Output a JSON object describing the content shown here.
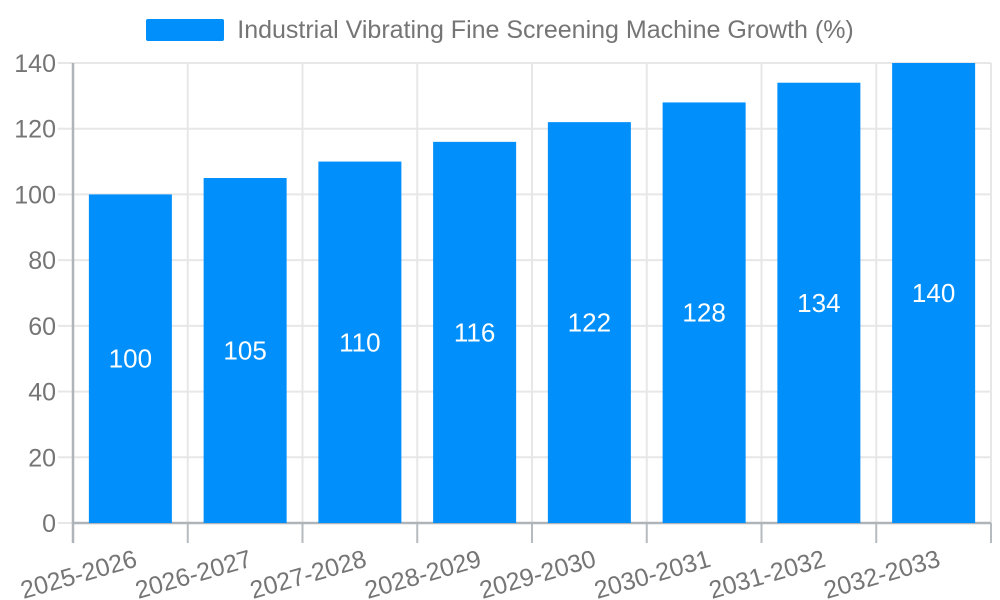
{
  "legend": {
    "label": "Industrial Vibrating Fine Screening Machine Growth (%)"
  },
  "colors": {
    "bar": "#008FFB",
    "grid": "#e7e7e7",
    "axis": "#aeb4b8",
    "tick": "#b6bbbf",
    "axis_label_text": "#757575",
    "value_label_text": "#ffffff",
    "background": "#ffffff"
  },
  "chart_data": {
    "type": "bar",
    "title": "Industrial Vibrating Fine Screening Machine Growth (%)",
    "series": [
      {
        "name": "Industrial Vibrating Fine Screening Machine Growth (%)",
        "values": [
          100,
          105,
          110,
          116,
          122,
          128,
          134,
          140
        ]
      }
    ],
    "categories": [
      "2025-2026",
      "2026-2027",
      "2027-2028",
      "2028-2029",
      "2029-2030",
      "2030-2031",
      "2031-2032",
      "2032-2033"
    ],
    "values": [
      100,
      105,
      110,
      116,
      122,
      128,
      134,
      140
    ],
    "data_labels": [
      "100",
      "105",
      "110",
      "116",
      "122",
      "128",
      "134",
      "140"
    ],
    "xlabel": "",
    "ylabel": "",
    "ylim": [
      0,
      140
    ],
    "yticks": [
      0,
      20,
      40,
      60,
      80,
      100,
      120,
      140
    ],
    "ytick_labels": [
      "0",
      "20",
      "40",
      "60",
      "80",
      "100",
      "120",
      "140"
    ],
    "grid": "on",
    "legend_position": "top",
    "x_label_rotation_deg": -16
  }
}
